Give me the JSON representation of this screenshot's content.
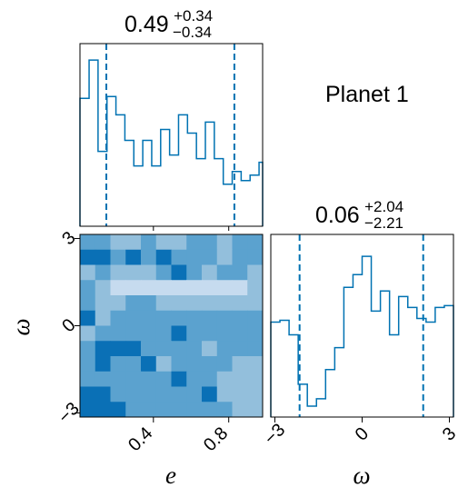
{
  "panel_label": "Planet 1",
  "chart_data": [
    {
      "type": "histogram",
      "parameter": "e",
      "title": {
        "median": "0.49",
        "upper": "+0.34",
        "lower": "−0.34"
      },
      "xlim": [
        0.01,
        0.98
      ],
      "quantiles": [
        0.15,
        0.83
      ],
      "bin_edges": [
        0.01,
        0.0585,
        0.106,
        0.1535,
        0.201,
        0.2485,
        0.296,
        0.3435,
        0.391,
        0.4385,
        0.486,
        0.5335,
        0.581,
        0.6285,
        0.676,
        0.7235,
        0.771,
        0.8185,
        0.866,
        0.9135,
        0.961,
        0.98
      ],
      "counts": [
        0.7,
        0.91,
        0.41,
        0.71,
        0.61,
        0.47,
        0.33,
        0.47,
        0.33,
        0.53,
        0.39,
        0.61,
        0.51,
        0.37,
        0.57,
        0.37,
        0.23,
        0.3,
        0.25,
        0.28,
        0.35
      ],
      "ylim": [
        0,
        1
      ]
    },
    {
      "type": "heatmap",
      "parameter_x": "e",
      "parameter_y": "ω",
      "xlabel": "e",
      "ylabel": "ω",
      "xlim": [
        0.01,
        0.98
      ],
      "ylim": [
        -3.14,
        3.14
      ],
      "xticks": [
        0.4,
        0.8
      ],
      "xtick_labels": [
        "0.4",
        "0.8"
      ],
      "yticks": [
        -3,
        0,
        3
      ],
      "ytick_labels": [
        "−3",
        "0",
        "3"
      ],
      "levels": [
        "#c6dbef",
        "#93bfdc",
        "#5ba2cf",
        "#0a70b6"
      ],
      "density_grid": [
        [
          2,
          2,
          1,
          1,
          2,
          1,
          1,
          2,
          2,
          1,
          2,
          2
        ],
        [
          3,
          3,
          2,
          3,
          2,
          3,
          2,
          2,
          2,
          1,
          2,
          2
        ],
        [
          1,
          2,
          1,
          1,
          1,
          2,
          3,
          2,
          1,
          2,
          2,
          1
        ],
        [
          2,
          1,
          0,
          0,
          0,
          0,
          0,
          0,
          0,
          0,
          0,
          1
        ],
        [
          2,
          1,
          1,
          2,
          2,
          1,
          1,
          1,
          1,
          1,
          1,
          1
        ],
        [
          3,
          1,
          2,
          2,
          2,
          2,
          2,
          2,
          2,
          2,
          2,
          2
        ],
        [
          1,
          2,
          2,
          2,
          2,
          2,
          3,
          2,
          2,
          2,
          2,
          2
        ],
        [
          2,
          3,
          3,
          3,
          2,
          2,
          2,
          2,
          1,
          2,
          2,
          2
        ],
        [
          2,
          3,
          2,
          2,
          3,
          1,
          2,
          2,
          2,
          2,
          1,
          1
        ],
        [
          2,
          2,
          2,
          2,
          2,
          2,
          3,
          2,
          2,
          1,
          1,
          1
        ],
        [
          3,
          3,
          2,
          2,
          2,
          2,
          2,
          2,
          3,
          1,
          1,
          1
        ],
        [
          3,
          3,
          3,
          2,
          2,
          2,
          2,
          2,
          2,
          2,
          1,
          1
        ]
      ]
    },
    {
      "type": "histogram",
      "parameter": "ω",
      "xlabel": "ω",
      "title": {
        "median": "0.06",
        "upper": "+2.04",
        "lower": "−2.21"
      },
      "xlim": [
        -3.14,
        3.14
      ],
      "quantiles": [
        -2.15,
        2.1
      ],
      "xticks": [
        -3,
        0,
        3
      ],
      "xtick_labels": [
        "−3",
        "0",
        "3"
      ],
      "bin_edges": [
        -3.14,
        -2.826,
        -2.512,
        -2.198,
        -1.884,
        -1.57,
        -1.256,
        -0.942,
        -0.628,
        -0.314,
        0,
        0.314,
        0.628,
        0.942,
        1.256,
        1.57,
        1.884,
        2.198,
        2.512,
        2.826,
        3.14
      ],
      "counts": [
        0.52,
        0.53,
        0.45,
        0.18,
        0.06,
        0.1,
        0.26,
        0.38,
        0.71,
        0.78,
        0.88,
        0.58,
        0.69,
        0.45,
        0.66,
        0.6,
        0.54,
        0.52,
        0.6,
        0.61
      ],
      "ylim": [
        0,
        1
      ]
    }
  ]
}
